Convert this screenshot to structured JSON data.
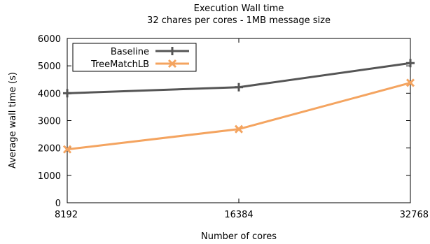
{
  "chart_data": {
    "type": "line",
    "title": "Execution Wall time",
    "subtitle": "32 chares per cores  - 1MB message size",
    "xlabel": "Number of cores",
    "ylabel": "Average wall time (s)",
    "categories": [
      "8192",
      "16384",
      "32768"
    ],
    "ylim": [
      0,
      6000
    ],
    "yticks": [
      "0",
      "1000",
      "2000",
      "3000",
      "4000",
      "5000",
      "6000"
    ],
    "grid": false,
    "legend_position": "top-left",
    "series": [
      {
        "name": "Baseline",
        "values": [
          4000,
          4220,
          5100
        ],
        "color": "#555555",
        "marker": "plus"
      },
      {
        "name": "TreeMatchLB",
        "values": [
          1950,
          2690,
          4380
        ],
        "color": "#f4a460",
        "marker": "cross"
      }
    ]
  }
}
